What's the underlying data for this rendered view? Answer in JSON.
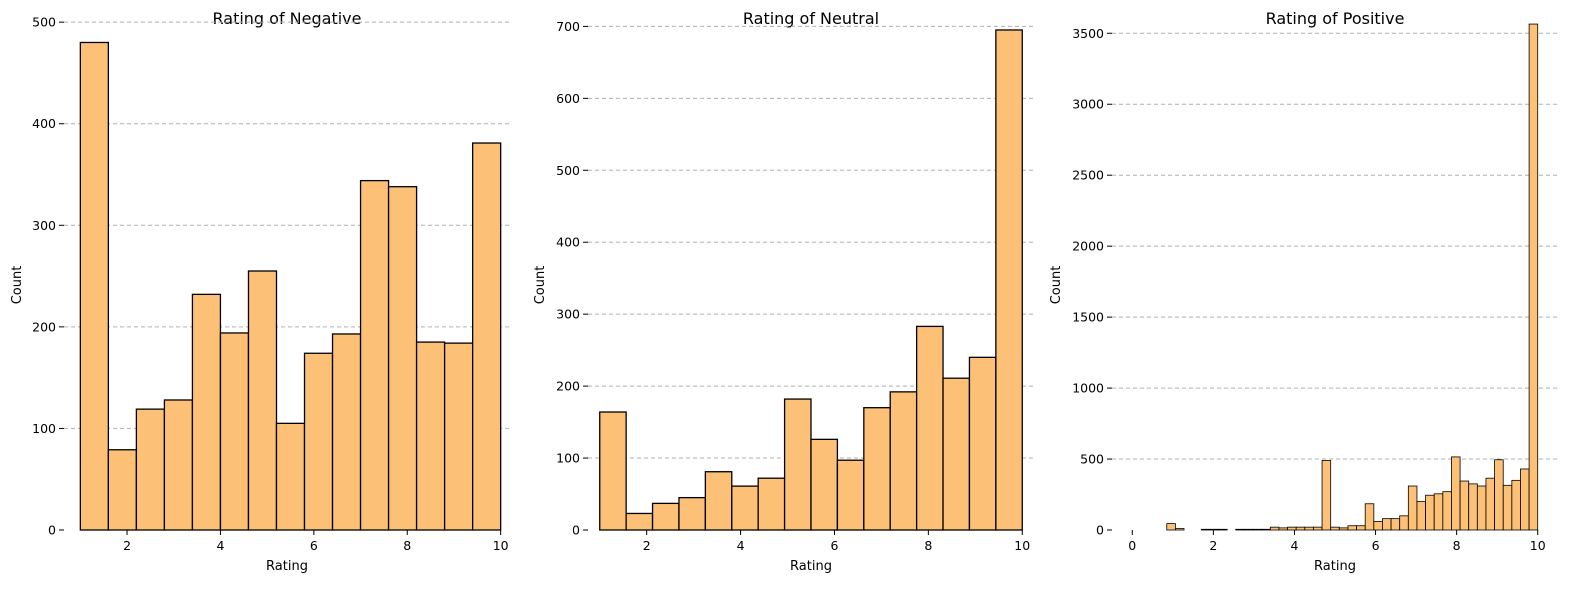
{
  "chart_data": [
    {
      "type": "bar",
      "title": "Rating of Negative",
      "xlabel": "Rating",
      "ylabel": "Count",
      "xlim": [
        0.65,
        10.2
      ],
      "ylim": [
        0,
        510
      ],
      "xticks": [
        2,
        4,
        6,
        8,
        10
      ],
      "yticks": [
        0,
        100,
        200,
        300,
        400,
        500
      ],
      "grid": "y",
      "bins": {
        "start": 1,
        "end": 10,
        "counts": [
          480,
          79,
          119,
          128,
          232,
          194,
          255,
          105,
          174,
          193,
          344,
          338,
          185,
          184,
          381
        ]
      }
    },
    {
      "type": "bar",
      "title": "Rating of Neutral",
      "xlabel": "Rating",
      "ylabel": "Count",
      "xlim": [
        0.75,
        10.25
      ],
      "ylim": [
        0,
        720
      ],
      "xticks": [
        2,
        4,
        6,
        8,
        10
      ],
      "yticks": [
        0,
        100,
        200,
        300,
        400,
        500,
        600,
        700
      ],
      "grid": "y",
      "bins": {
        "start": 1,
        "end": 10,
        "counts": [
          164,
          23,
          37,
          45,
          81,
          61,
          72,
          182,
          126,
          97,
          170,
          192,
          283,
          211,
          240,
          695
        ]
      }
    },
    {
      "type": "bar",
      "title": "Rating of Positive",
      "xlabel": "Rating",
      "ylabel": "Count",
      "xlim": [
        -0.5,
        10.5
      ],
      "ylim": [
        0,
        3650
      ],
      "xticks": [
        0,
        2,
        4,
        6,
        8,
        10
      ],
      "yticks": [
        0,
        500,
        1000,
        1500,
        2000,
        2500,
        3000,
        3500
      ],
      "grid": "y",
      "bins": {
        "start": 0,
        "end": 10,
        "counts": [
          0,
          0,
          0,
          0,
          45,
          10,
          0,
          0,
          5,
          5,
          5,
          0,
          5,
          5,
          5,
          5,
          20,
          15,
          20,
          20,
          20,
          20,
          490,
          20,
          15,
          30,
          30,
          185,
          60,
          80,
          80,
          100,
          310,
          200,
          245,
          255,
          270,
          515,
          345,
          325,
          310,
          365,
          495,
          315,
          350,
          430,
          3565
        ]
      }
    }
  ]
}
